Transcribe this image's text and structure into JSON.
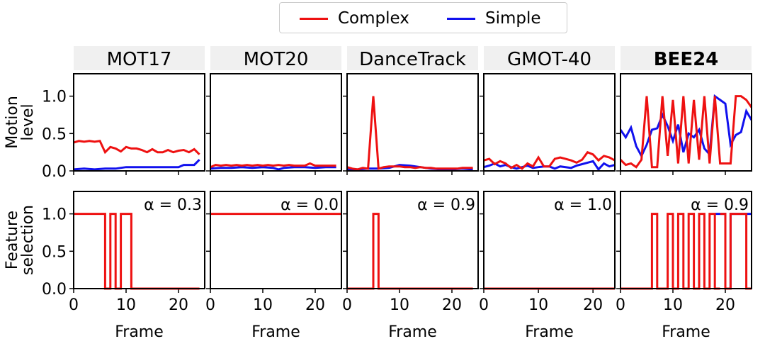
{
  "legend": {
    "items": [
      {
        "label": "Complex",
        "color": "#ee1111"
      },
      {
        "label": "Simple",
        "color": "#1111ee"
      }
    ]
  },
  "colors": {
    "complex": "#ee1111",
    "simple": "#1111ee",
    "header_bg": "#f0f0f0"
  },
  "chart_data": {
    "type": "line",
    "x_label": "Frame",
    "x_ticks": [
      0,
      10,
      20
    ],
    "rows": [
      {
        "ylabel": [
          "Motion",
          "level"
        ],
        "ylim": [
          0,
          1.3
        ],
        "yticks": [
          "0.0",
          "0.5",
          "1.0"
        ]
      },
      {
        "ylabel": [
          "Feature",
          "selection"
        ],
        "ylim": [
          0,
          1.3
        ],
        "yticks": [
          "0.0",
          "0.5",
          "1.0"
        ]
      }
    ],
    "panels": [
      {
        "title": "MOT17",
        "bold": false,
        "xlim": [
          0,
          25
        ],
        "alpha_label": "α = 0.3",
        "motion": {
          "complex": {
            "x": [
              0,
              1,
              2,
              3,
              4,
              5,
              6,
              7,
              8,
              9,
              10,
              11,
              12,
              13,
              14,
              15,
              16,
              17,
              18,
              19,
              20,
              21,
              22,
              23,
              24
            ],
            "y": [
              0.38,
              0.4,
              0.39,
              0.4,
              0.39,
              0.4,
              0.25,
              0.32,
              0.3,
              0.26,
              0.32,
              0.3,
              0.3,
              0.28,
              0.25,
              0.29,
              0.25,
              0.25,
              0.28,
              0.25,
              0.27,
              0.28,
              0.25,
              0.29,
              0.22
            ]
          },
          "simple": {
            "x": [
              0,
              2,
              4,
              6,
              8,
              10,
              12,
              14,
              16,
              18,
              20,
              21,
              22,
              23,
              24
            ],
            "y": [
              0.02,
              0.03,
              0.02,
              0.03,
              0.03,
              0.05,
              0.05,
              0.05,
              0.05,
              0.05,
              0.05,
              0.08,
              0.08,
              0.08,
              0.15
            ]
          }
        },
        "selection": {
          "complex": {
            "x": [
              0,
              6,
              6,
              7,
              7,
              8,
              8,
              9,
              9,
              10,
              10,
              11,
              11,
              24
            ],
            "y": [
              1,
              1,
              0,
              0,
              1,
              1,
              0,
              0,
              1,
              1,
              1,
              1,
              0,
              0
            ]
          }
        }
      },
      {
        "title": "MOT20",
        "bold": false,
        "xlim": [
          0,
          25
        ],
        "alpha_label": "α = 0.0",
        "motion": {
          "complex": {
            "x": [
              0,
              1,
              2,
              3,
              4,
              5,
              6,
              7,
              8,
              9,
              10,
              11,
              12,
              13,
              14,
              15,
              16,
              17,
              18,
              19,
              20,
              21,
              22,
              23,
              24
            ],
            "y": [
              0.05,
              0.08,
              0.07,
              0.08,
              0.07,
              0.08,
              0.07,
              0.08,
              0.07,
              0.08,
              0.07,
              0.08,
              0.07,
              0.08,
              0.07,
              0.08,
              0.07,
              0.07,
              0.07,
              0.1,
              0.07,
              0.07,
              0.07,
              0.07,
              0.07
            ]
          },
          "simple": {
            "x": [
              0,
              2,
              4,
              6,
              8,
              10,
              12,
              13,
              14,
              16,
              18,
              20,
              22,
              24
            ],
            "y": [
              0.03,
              0.04,
              0.04,
              0.05,
              0.04,
              0.05,
              0.04,
              0.02,
              0.04,
              0.05,
              0.05,
              0.04,
              0.05,
              0.05
            ]
          }
        },
        "selection": {
          "complex": {
            "x": [
              0,
              25
            ],
            "y": [
              1,
              1
            ]
          }
        }
      },
      {
        "title": "DanceTrack",
        "bold": false,
        "xlim": [
          0,
          25
        ],
        "alpha_label": "α = 0.9",
        "motion": {
          "complex": {
            "x": [
              0,
              1,
              2,
              3,
              4,
              5,
              6,
              7,
              8,
              9,
              10,
              11,
              12,
              13,
              14,
              15,
              16,
              17,
              18,
              19,
              20,
              21,
              22,
              23,
              24
            ],
            "y": [
              0.05,
              0.03,
              0.02,
              0.04,
              0.03,
              1.0,
              0.03,
              0.05,
              0.06,
              0.06,
              0.06,
              0.05,
              0.05,
              0.04,
              0.05,
              0.04,
              0.04,
              0.03,
              0.03,
              0.03,
              0.03,
              0.03,
              0.04,
              0.04,
              0.04
            ]
          },
          "simple": {
            "x": [
              0,
              2,
              4,
              6,
              8,
              10,
              12,
              14,
              16,
              18,
              20,
              22,
              24
            ],
            "y": [
              0.02,
              0.02,
              0.03,
              0.03,
              0.04,
              0.08,
              0.07,
              0.05,
              0.03,
              0.02,
              0.02,
              0.03,
              0.02
            ]
          }
        },
        "selection": {
          "complex": {
            "x": [
              0,
              5,
              5,
              6,
              6,
              24
            ],
            "y": [
              0,
              0,
              1,
              1,
              0,
              0
            ]
          }
        }
      },
      {
        "title": "GMOT-40",
        "bold": false,
        "xlim": [
          0,
          24
        ],
        "alpha_label": "α = 1.0",
        "motion": {
          "complex": {
            "x": [
              0,
              1,
              2,
              3,
              4,
              5,
              6,
              7,
              8,
              9,
              10,
              11,
              12,
              13,
              14,
              15,
              16,
              17,
              18,
              19,
              20,
              21,
              22,
              23,
              24
            ],
            "y": [
              0.14,
              0.16,
              0.09,
              0.13,
              0.1,
              0.04,
              0.08,
              0.03,
              0.1,
              0.06,
              0.18,
              0.06,
              0.06,
              0.16,
              0.18,
              0.16,
              0.14,
              0.11,
              0.15,
              0.25,
              0.22,
              0.14,
              0.2,
              0.18,
              0.14
            ]
          },
          "simple": {
            "x": [
              0,
              1,
              2,
              3,
              4,
              5,
              6,
              7,
              8,
              9,
              10,
              11,
              12,
              13,
              14,
              15,
              16,
              17,
              18,
              19,
              20,
              21,
              22,
              23,
              24
            ],
            "y": [
              0.05,
              0.07,
              0.1,
              0.06,
              0.08,
              0.05,
              0.03,
              0.05,
              0.07,
              0.04,
              0.05,
              0.06,
              0.06,
              0.03,
              0.06,
              0.05,
              0.04,
              0.07,
              0.09,
              0.11,
              0.13,
              0.02,
              0.1,
              0.06,
              0.08
            ]
          }
        },
        "selection": {
          "complex": {
            "x": [
              0,
              24
            ],
            "y": [
              0,
              0
            ]
          }
        }
      },
      {
        "title": "BEE24",
        "bold": true,
        "xlim": [
          0,
          25
        ],
        "alpha_label": "α = 0.9",
        "motion": {
          "complex": {
            "x": [
              0,
              1,
              2,
              3,
              4,
              5,
              6,
              7,
              8,
              9,
              10,
              11,
              12,
              13,
              14,
              15,
              16,
              17,
              18,
              19,
              20,
              21,
              22,
              23,
              24,
              25
            ],
            "y": [
              0.15,
              0.08,
              0.1,
              0.05,
              0.15,
              1.0,
              0.05,
              0.05,
              1.0,
              0.2,
              0.95,
              0.1,
              1.0,
              0.1,
              0.95,
              0.15,
              1.0,
              0.1,
              1.0,
              0.1,
              0.1,
              0.1,
              1.0,
              1.0,
              0.95,
              0.85
            ]
          },
          "simple": {
            "x": [
              0,
              1,
              2,
              3,
              4,
              5,
              6,
              7,
              8,
              9,
              10,
              11,
              12,
              13,
              14,
              15,
              16,
              17,
              18,
              19,
              20,
              21,
              22,
              23,
              24,
              25
            ],
            "y": [
              0.55,
              0.45,
              0.58,
              0.33,
              0.2,
              0.35,
              0.55,
              0.57,
              0.75,
              0.6,
              0.4,
              0.62,
              0.25,
              0.5,
              0.45,
              0.55,
              0.3,
              0.22,
              1.0,
              0.95,
              0.9,
              0.35,
              0.48,
              0.52,
              0.8,
              0.68
            ]
          }
        },
        "selection": {
          "complex": {
            "x": [
              0,
              6,
              6,
              7,
              7,
              9,
              9,
              10,
              10,
              11,
              11,
              12,
              12,
              13,
              13,
              14,
              14,
              15,
              15,
              16,
              16,
              17,
              17,
              18,
              18,
              19
            ],
            "y": [
              0,
              0,
              1,
              1,
              0,
              0,
              1,
              1,
              0,
              0,
              1,
              1,
              0,
              0,
              1,
              1,
              0,
              0,
              1,
              1,
              0,
              0,
              1,
              1,
              0,
              0
            ]
          },
          "simple": {
            "x": [
              18,
              20,
              20,
              21,
              21,
              25
            ],
            "y": [
              1,
              1,
              0,
              0,
              1,
              1
            ]
          },
          "complex_tail": {
            "x": [
              19,
              19,
              20,
              20,
              21,
              21,
              22,
              22,
              24,
              24,
              25
            ],
            "y": [
              1,
              1,
              1,
              0,
              0,
              1,
              1,
              1,
              1,
              0,
              0
            ]
          }
        }
      }
    ]
  }
}
